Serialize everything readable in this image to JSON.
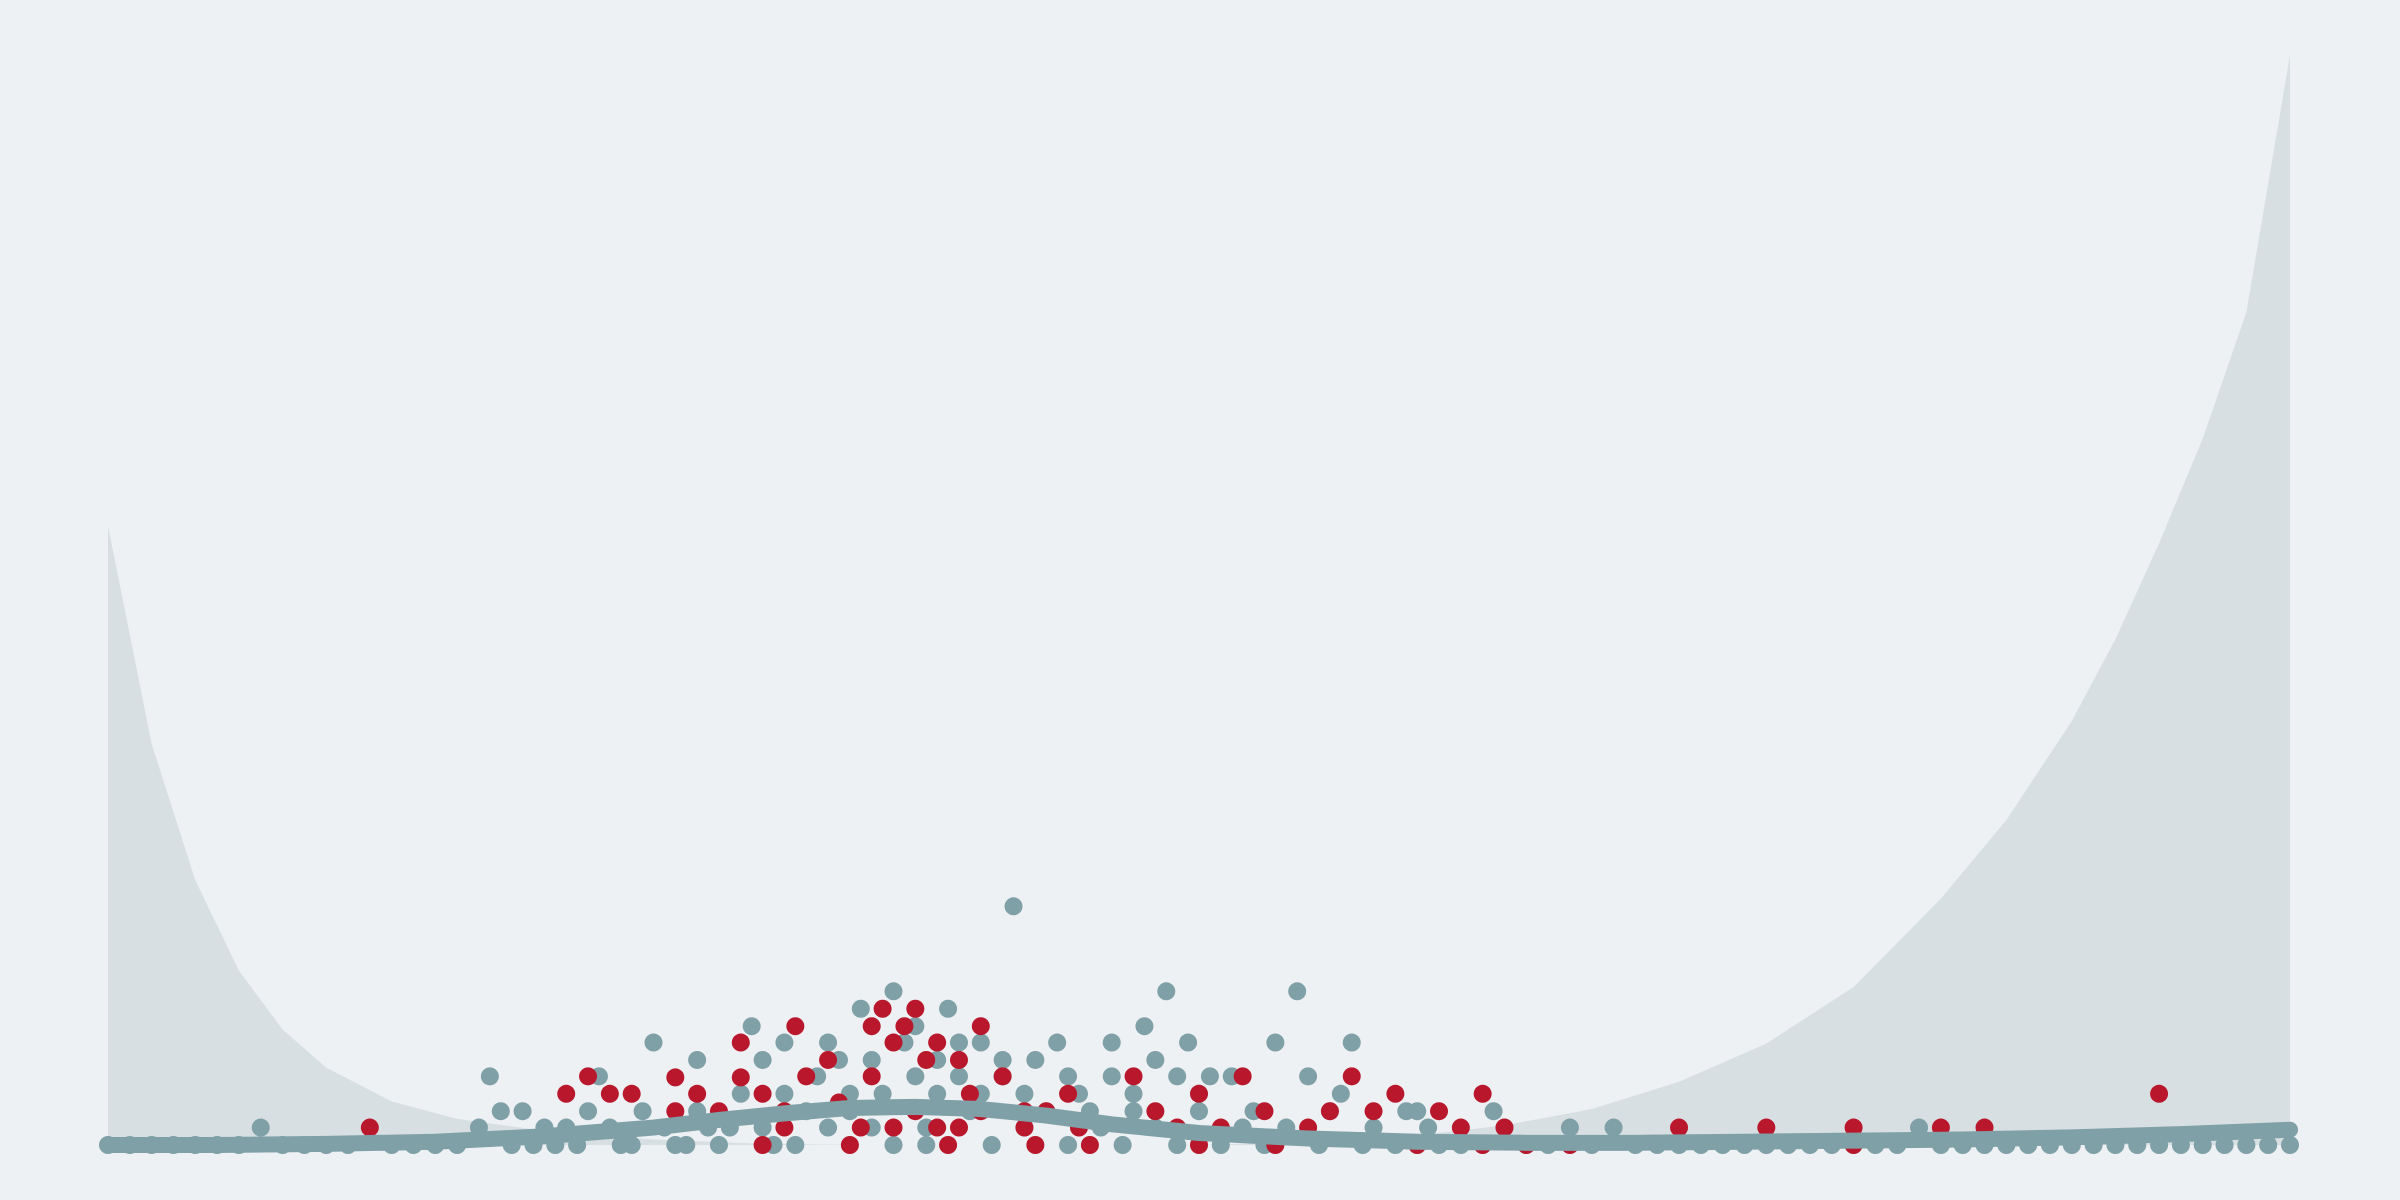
{
  "chart_data": {
    "type": "scatter",
    "title": "",
    "xlabel": "",
    "ylabel": "",
    "grid": false,
    "legend": "none",
    "xlim": [
      0,
      1
    ],
    "ylim": [
      0,
      1
    ],
    "colors": {
      "background": "#edf1f4",
      "band": "#d7dfe2",
      "highlight": "#b9182c",
      "base": "#7fa0a6"
    },
    "band": {
      "description_free": true,
      "x": [
        0,
        0.02,
        0.04,
        0.06,
        0.08,
        0.1,
        0.13,
        0.16,
        0.2,
        0.25,
        0.3,
        0.35,
        0.4,
        0.45,
        0.5,
        0.55,
        0.6,
        0.64,
        0.68,
        0.72,
        0.76,
        0.8,
        0.84,
        0.87,
        0.9,
        0.92,
        0.94,
        0.96,
        0.98,
        1.0
      ],
      "y": [
        0.568,
        0.368,
        0.243,
        0.16,
        0.106,
        0.071,
        0.04,
        0.024,
        0.013,
        0.005,
        0.001,
        0.0,
        0.0,
        0.0,
        0.0,
        0.003,
        0.009,
        0.018,
        0.033,
        0.058,
        0.093,
        0.145,
        0.226,
        0.298,
        0.389,
        0.464,
        0.552,
        0.648,
        0.764,
        1.0
      ]
    },
    "trend": {
      "x": [
        0,
        0.05,
        0.1,
        0.15,
        0.2,
        0.25,
        0.28,
        0.31,
        0.34,
        0.37,
        0.4,
        0.43,
        0.46,
        0.5,
        0.55,
        0.6,
        0.65,
        0.7,
        0.75,
        0.8,
        0.85,
        0.9,
        0.95,
        1.0
      ],
      "y": [
        0.0,
        0.0,
        0.001,
        0.003,
        0.008,
        0.016,
        0.023,
        0.029,
        0.034,
        0.035,
        0.033,
        0.027,
        0.019,
        0.011,
        0.006,
        0.003,
        0.002,
        0.002,
        0.003,
        0.004,
        0.005,
        0.007,
        0.01,
        0.014
      ]
    },
    "series": [
      {
        "points": [
          [
            0.12,
            0.016
          ],
          [
            0.21,
            0.047
          ],
          [
            0.22,
            0.063
          ],
          [
            0.23,
            0.047
          ],
          [
            0.24,
            0.047
          ],
          [
            0.26,
            0.031
          ],
          [
            0.26,
            0.062
          ],
          [
            0.27,
            0.047
          ],
          [
            0.28,
            0.031
          ],
          [
            0.29,
            0.062
          ],
          [
            0.29,
            0.094
          ],
          [
            0.3,
            0.047
          ],
          [
            0.3,
            0.0
          ],
          [
            0.31,
            0.016
          ],
          [
            0.31,
            0.031
          ],
          [
            0.315,
            0.109
          ],
          [
            0.32,
            0.063
          ],
          [
            0.33,
            0.078
          ],
          [
            0.335,
            0.039
          ],
          [
            0.34,
            0.0
          ],
          [
            0.345,
            0.016
          ],
          [
            0.35,
            0.109
          ],
          [
            0.35,
            0.063
          ],
          [
            0.355,
            0.125
          ],
          [
            0.36,
            0.094
          ],
          [
            0.36,
            0.016
          ],
          [
            0.365,
            0.109
          ],
          [
            0.37,
            0.125
          ],
          [
            0.37,
            0.031
          ],
          [
            0.375,
            0.078
          ],
          [
            0.38,
            0.016
          ],
          [
            0.38,
            0.094
          ],
          [
            0.385,
            0.0
          ],
          [
            0.39,
            0.016
          ],
          [
            0.39,
            0.078
          ],
          [
            0.395,
            0.047
          ],
          [
            0.4,
            0.109
          ],
          [
            0.4,
            0.031
          ],
          [
            0.41,
            0.063
          ],
          [
            0.42,
            0.016
          ],
          [
            0.42,
            0.031
          ],
          [
            0.425,
            0.0
          ],
          [
            0.43,
            0.031
          ],
          [
            0.44,
            0.047
          ],
          [
            0.445,
            0.016
          ],
          [
            0.45,
            0.0
          ],
          [
            0.47,
            0.063
          ],
          [
            0.48,
            0.031
          ],
          [
            0.49,
            0.016
          ],
          [
            0.5,
            0.047
          ],
          [
            0.5,
            0.0
          ],
          [
            0.51,
            0.016
          ],
          [
            0.52,
            0.063
          ],
          [
            0.53,
            0.031
          ],
          [
            0.535,
            0.0
          ],
          [
            0.55,
            0.016
          ],
          [
            0.56,
            0.031
          ],
          [
            0.57,
            0.063
          ],
          [
            0.58,
            0.031
          ],
          [
            0.59,
            0.047
          ],
          [
            0.6,
            0.0
          ],
          [
            0.61,
            0.031
          ],
          [
            0.62,
            0.016
          ],
          [
            0.63,
            0.0
          ],
          [
            0.63,
            0.047
          ],
          [
            0.64,
            0.016
          ],
          [
            0.65,
            0.0
          ],
          [
            0.67,
            0.0
          ],
          [
            0.72,
            0.016
          ],
          [
            0.76,
            0.016
          ],
          [
            0.8,
            0.016
          ],
          [
            0.8,
            0.0
          ],
          [
            0.84,
            0.016
          ],
          [
            0.86,
            0.016
          ],
          [
            0.94,
            0.047
          ]
        ]
      },
      {
        "points": [
          [
            0.0,
            0.0
          ],
          [
            0.01,
            0.0
          ],
          [
            0.02,
            0.0
          ],
          [
            0.03,
            0.0
          ],
          [
            0.04,
            0.0
          ],
          [
            0.05,
            0.0
          ],
          [
            0.06,
            0.0
          ],
          [
            0.07,
            0.016
          ],
          [
            0.08,
            0.0
          ],
          [
            0.09,
            0.0
          ],
          [
            0.1,
            0.0
          ],
          [
            0.11,
            0.0
          ],
          [
            0.13,
            0.0
          ],
          [
            0.14,
            0.0
          ],
          [
            0.15,
            0.0
          ],
          [
            0.16,
            0.0
          ],
          [
            0.17,
            0.016
          ],
          [
            0.175,
            0.063
          ],
          [
            0.18,
            0.031
          ],
          [
            0.185,
            0.0
          ],
          [
            0.19,
            0.031
          ],
          [
            0.195,
            0.0
          ],
          [
            0.2,
            0.016
          ],
          [
            0.205,
            0.0
          ],
          [
            0.21,
            0.016
          ],
          [
            0.215,
            0.0
          ],
          [
            0.22,
            0.031
          ],
          [
            0.225,
            0.063
          ],
          [
            0.23,
            0.016
          ],
          [
            0.235,
            0.0
          ],
          [
            0.24,
            0.0
          ],
          [
            0.245,
            0.031
          ],
          [
            0.25,
            0.094
          ],
          [
            0.255,
            0.016
          ],
          [
            0.26,
            0.0
          ],
          [
            0.265,
            0.0
          ],
          [
            0.27,
            0.031
          ],
          [
            0.27,
            0.078
          ],
          [
            0.275,
            0.016
          ],
          [
            0.28,
            0.0
          ],
          [
            0.285,
            0.016
          ],
          [
            0.29,
            0.047
          ],
          [
            0.295,
            0.109
          ],
          [
            0.3,
            0.016
          ],
          [
            0.3,
            0.078
          ],
          [
            0.305,
            0.0
          ],
          [
            0.31,
            0.047
          ],
          [
            0.31,
            0.094
          ],
          [
            0.315,
            0.0
          ],
          [
            0.32,
            0.031
          ],
          [
            0.325,
            0.063
          ],
          [
            0.33,
            0.016
          ],
          [
            0.33,
            0.094
          ],
          [
            0.335,
            0.078
          ],
          [
            0.34,
            0.031
          ],
          [
            0.34,
            0.047
          ],
          [
            0.345,
            0.125
          ],
          [
            0.35,
            0.016
          ],
          [
            0.35,
            0.078
          ],
          [
            0.355,
            0.047
          ],
          [
            0.36,
            0.0
          ],
          [
            0.36,
            0.141
          ],
          [
            0.365,
            0.094
          ],
          [
            0.37,
            0.063
          ],
          [
            0.37,
            0.109
          ],
          [
            0.375,
            0.016
          ],
          [
            0.375,
            0.0
          ],
          [
            0.38,
            0.047
          ],
          [
            0.38,
            0.078
          ],
          [
            0.385,
            0.125
          ],
          [
            0.39,
            0.094
          ],
          [
            0.39,
            0.063
          ],
          [
            0.395,
            0.031
          ],
          [
            0.4,
            0.047
          ],
          [
            0.4,
            0.094
          ],
          [
            0.405,
            0.0
          ],
          [
            0.41,
            0.078
          ],
          [
            0.41,
            0.063
          ],
          [
            0.415,
            0.219
          ],
          [
            0.42,
            0.047
          ],
          [
            0.42,
            0.016
          ],
          [
            0.425,
            0.078
          ],
          [
            0.43,
            0.031
          ],
          [
            0.435,
            0.094
          ],
          [
            0.44,
            0.0
          ],
          [
            0.44,
            0.063
          ],
          [
            0.445,
            0.047
          ],
          [
            0.45,
            0.031
          ],
          [
            0.455,
            0.016
          ],
          [
            0.46,
            0.063
          ],
          [
            0.46,
            0.094
          ],
          [
            0.465,
            0.0
          ],
          [
            0.47,
            0.047
          ],
          [
            0.47,
            0.031
          ],
          [
            0.475,
            0.109
          ],
          [
            0.48,
            0.016
          ],
          [
            0.48,
            0.078
          ],
          [
            0.485,
            0.141
          ],
          [
            0.49,
            0.0
          ],
          [
            0.49,
            0.063
          ],
          [
            0.495,
            0.094
          ],
          [
            0.5,
            0.047
          ],
          [
            0.5,
            0.031
          ],
          [
            0.505,
            0.063
          ],
          [
            0.51,
            0.0
          ],
          [
            0.515,
            0.063
          ],
          [
            0.52,
            0.016
          ],
          [
            0.525,
            0.031
          ],
          [
            0.53,
            0.0
          ],
          [
            0.535,
            0.094
          ],
          [
            0.54,
            0.016
          ],
          [
            0.545,
            0.141
          ],
          [
            0.55,
            0.063
          ],
          [
            0.555,
            0.0
          ],
          [
            0.56,
            0.031
          ],
          [
            0.565,
            0.047
          ],
          [
            0.57,
            0.094
          ],
          [
            0.575,
            0.0
          ],
          [
            0.58,
            0.016
          ],
          [
            0.59,
            0.0
          ],
          [
            0.595,
            0.031
          ],
          [
            0.6,
            0.031
          ],
          [
            0.6,
            0.0
          ],
          [
            0.605,
            0.016
          ],
          [
            0.61,
            0.0
          ],
          [
            0.62,
            0.0
          ],
          [
            0.63,
            0.0
          ],
          [
            0.635,
            0.031
          ],
          [
            0.64,
            0.016
          ],
          [
            0.65,
            0.0
          ],
          [
            0.66,
            0.0
          ],
          [
            0.67,
            0.016
          ],
          [
            0.68,
            0.0
          ],
          [
            0.69,
            0.016
          ],
          [
            0.7,
            0.0
          ],
          [
            0.71,
            0.0
          ],
          [
            0.72,
            0.0
          ],
          [
            0.73,
            0.0
          ],
          [
            0.74,
            0.0
          ],
          [
            0.75,
            0.0
          ],
          [
            0.76,
            0.0
          ],
          [
            0.77,
            0.0
          ],
          [
            0.78,
            0.0
          ],
          [
            0.79,
            0.0
          ],
          [
            0.8,
            0.0
          ],
          [
            0.81,
            0.0
          ],
          [
            0.82,
            0.0
          ],
          [
            0.83,
            0.016
          ],
          [
            0.84,
            0.0
          ],
          [
            0.85,
            0.0
          ],
          [
            0.86,
            0.0
          ],
          [
            0.87,
            0.0
          ],
          [
            0.88,
            0.0
          ],
          [
            0.89,
            0.0
          ],
          [
            0.9,
            0.0
          ],
          [
            0.91,
            0.0
          ],
          [
            0.92,
            0.0
          ],
          [
            0.93,
            0.0
          ],
          [
            0.94,
            0.0
          ],
          [
            0.95,
            0.0
          ],
          [
            0.96,
            0.0
          ],
          [
            0.97,
            0.0
          ],
          [
            0.98,
            0.0
          ],
          [
            0.99,
            0.0
          ],
          [
            1.0,
            0.0
          ]
        ]
      }
    ]
  }
}
